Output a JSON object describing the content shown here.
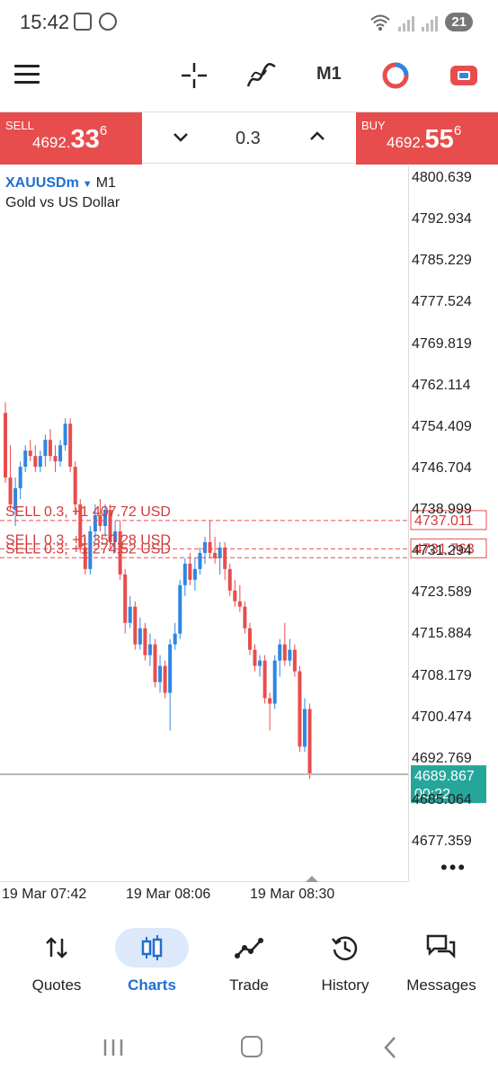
{
  "status_bar": {
    "time": "15:42",
    "battery": "21"
  },
  "toolbar": {
    "timeframe": "M1"
  },
  "order_bar": {
    "sell_label": "SELL",
    "sell_price_main": "4692.",
    "sell_price_big": "33",
    "sell_price_sup": "6",
    "lot": "0.3",
    "buy_label": "BUY",
    "buy_price_main": "4692.",
    "buy_price_big": "55",
    "buy_price_sup": "6"
  },
  "chart": {
    "symbol": "XAUUSDm",
    "timeframe": "M1",
    "description": "Gold vs US Dollar",
    "price_scale": [
      "4800.639",
      "4792.934",
      "4785.229",
      "4777.524",
      "4769.819",
      "4762.114",
      "4754.409",
      "4746.704",
      "4738.999",
      "4731.294",
      "4723.589",
      "4715.884",
      "4708.179",
      "4700.474",
      "4692.769",
      "4685.064",
      "4677.359"
    ],
    "time_labels": [
      "19 Mar 07:42",
      "19 Mar 08:06",
      "19 Mar 08:30"
    ],
    "current_price": "4689.867",
    "countdown": "00:22",
    "orders": [
      {
        "text": "SELL 0.3, +1 407.72 USD",
        "price": "4737.011",
        "price_value": 4737.011
      },
      {
        "text": "SELL 0.3, +1 350.28 USD",
        "price": "4731.763",
        "price_value": 4731.763
      },
      {
        "text": "SELL 0.3, +1 274.52 USD",
        "price_value": 4730.1
      }
    ],
    "colors": {
      "bull": "#2f86e0",
      "bear": "#e84d4d",
      "current": "#26a69a"
    }
  },
  "chart_data": {
    "type": "candlestick",
    "series": [
      {
        "o": 4757,
        "h": 4759,
        "l": 4744,
        "c": 4745
      },
      {
        "o": 4745,
        "h": 4751,
        "l": 4739,
        "c": 4740
      },
      {
        "o": 4739,
        "h": 4745,
        "l": 4736,
        "c": 4743
      },
      {
        "o": 4743,
        "h": 4748,
        "l": 4741,
        "c": 4747
      },
      {
        "o": 4747,
        "h": 4751,
        "l": 4746,
        "c": 4750
      },
      {
        "o": 4750,
        "h": 4752,
        "l": 4748,
        "c": 4749
      },
      {
        "o": 4749,
        "h": 4751,
        "l": 4746,
        "c": 4747
      },
      {
        "o": 4747,
        "h": 4750,
        "l": 4746,
        "c": 4749
      },
      {
        "o": 4749,
        "h": 4753,
        "l": 4747,
        "c": 4752
      },
      {
        "o": 4752,
        "h": 4754,
        "l": 4748,
        "c": 4749
      },
      {
        "o": 4749,
        "h": 4751,
        "l": 4746,
        "c": 4748
      },
      {
        "o": 4748,
        "h": 4752,
        "l": 4747,
        "c": 4751
      },
      {
        "o": 4751,
        "h": 4756,
        "l": 4750,
        "c": 4755
      },
      {
        "o": 4755,
        "h": 4756,
        "l": 4746,
        "c": 4747
      },
      {
        "o": 4747,
        "h": 4748,
        "l": 4738,
        "c": 4740
      },
      {
        "o": 4740,
        "h": 4741,
        "l": 4731,
        "c": 4732
      },
      {
        "o": 4732,
        "h": 4734,
        "l": 4727,
        "c": 4728
      },
      {
        "o": 4728,
        "h": 4736,
        "l": 4727,
        "c": 4735
      },
      {
        "o": 4735,
        "h": 4740,
        "l": 4733,
        "c": 4738
      },
      {
        "o": 4738,
        "h": 4741,
        "l": 4735,
        "c": 4736
      },
      {
        "o": 4736,
        "h": 4740,
        "l": 4734,
        "c": 4739
      },
      {
        "o": 4739,
        "h": 4740,
        "l": 4732,
        "c": 4733
      },
      {
        "o": 4733,
        "h": 4737,
        "l": 4731,
        "c": 4735
      },
      {
        "o": 4735,
        "h": 4737,
        "l": 4726,
        "c": 4727
      },
      {
        "o": 4727,
        "h": 4728,
        "l": 4716,
        "c": 4718
      },
      {
        "o": 4718,
        "h": 4723,
        "l": 4717,
        "c": 4721
      },
      {
        "o": 4721,
        "h": 4722,
        "l": 4713,
        "c": 4714
      },
      {
        "o": 4714,
        "h": 4719,
        "l": 4713,
        "c": 4717
      },
      {
        "o": 4717,
        "h": 4718,
        "l": 4711,
        "c": 4712
      },
      {
        "o": 4712,
        "h": 4716,
        "l": 4710,
        "c": 4714
      },
      {
        "o": 4714,
        "h": 4715,
        "l": 4706,
        "c": 4707
      },
      {
        "o": 4707,
        "h": 4712,
        "l": 4705,
        "c": 4710
      },
      {
        "o": 4710,
        "h": 4711,
        "l": 4704,
        "c": 4705
      },
      {
        "o": 4705,
        "h": 4715,
        "l": 4698,
        "c": 4714
      },
      {
        "o": 4714,
        "h": 4718,
        "l": 4713,
        "c": 4716
      },
      {
        "o": 4716,
        "h": 4726,
        "l": 4715,
        "c": 4725
      },
      {
        "o": 4725,
        "h": 4730,
        "l": 4723,
        "c": 4729
      },
      {
        "o": 4729,
        "h": 4731,
        "l": 4725,
        "c": 4726
      },
      {
        "o": 4726,
        "h": 4730,
        "l": 4724,
        "c": 4728
      },
      {
        "o": 4728,
        "h": 4732,
        "l": 4727,
        "c": 4731
      },
      {
        "o": 4731,
        "h": 4734,
        "l": 4729,
        "c": 4733
      },
      {
        "o": 4733,
        "h": 4737,
        "l": 4730,
        "c": 4731
      },
      {
        "o": 4731,
        "h": 4734,
        "l": 4729,
        "c": 4730
      },
      {
        "o": 4730,
        "h": 4733,
        "l": 4727,
        "c": 4732
      },
      {
        "o": 4732,
        "h": 4733,
        "l": 4726,
        "c": 4728
      },
      {
        "o": 4728,
        "h": 4729,
        "l": 4723,
        "c": 4724
      },
      {
        "o": 4724,
        "h": 4726,
        "l": 4721,
        "c": 4722
      },
      {
        "o": 4722,
        "h": 4725,
        "l": 4720,
        "c": 4721
      },
      {
        "o": 4721,
        "h": 4722,
        "l": 4716,
        "c": 4717
      },
      {
        "o": 4717,
        "h": 4718,
        "l": 4712,
        "c": 4713
      },
      {
        "o": 4713,
        "h": 4714,
        "l": 4709,
        "c": 4710
      },
      {
        "o": 4710,
        "h": 4712,
        "l": 4708,
        "c": 4711
      },
      {
        "o": 4711,
        "h": 4712,
        "l": 4703,
        "c": 4704
      },
      {
        "o": 4704,
        "h": 4705,
        "l": 4698,
        "c": 4703
      },
      {
        "o": 4703,
        "h": 4712,
        "l": 4702,
        "c": 4711
      },
      {
        "o": 4711,
        "h": 4715,
        "l": 4708,
        "c": 4714
      },
      {
        "o": 4714,
        "h": 4718,
        "l": 4710,
        "c": 4711
      },
      {
        "o": 4711,
        "h": 4715,
        "l": 4710,
        "c": 4713
      },
      {
        "o": 4713,
        "h": 4714,
        "l": 4708,
        "c": 4709
      },
      {
        "o": 4709,
        "h": 4710,
        "l": 4694,
        "c": 4695
      },
      {
        "o": 4695,
        "h": 4704,
        "l": 4694,
        "c": 4702
      },
      {
        "o": 4702,
        "h": 4703,
        "l": 4689,
        "c": 4689.867
      }
    ],
    "ylim": [
      4677.359,
      4800.639
    ],
    "xlabel": "",
    "ylabel": ""
  },
  "nav": {
    "items": [
      {
        "label": "Quotes",
        "icon": "quotes-icon"
      },
      {
        "label": "Charts",
        "icon": "charts-icon",
        "active": true
      },
      {
        "label": "Trade",
        "icon": "trade-icon"
      },
      {
        "label": "History",
        "icon": "history-icon"
      },
      {
        "label": "Messages",
        "icon": "messages-icon"
      }
    ]
  }
}
